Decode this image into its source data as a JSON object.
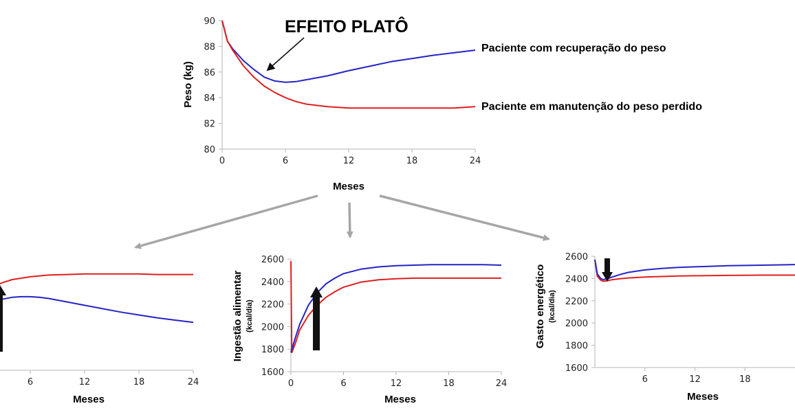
{
  "colors": {
    "blue": "#2323c8",
    "red": "#e01e1e",
    "connector": "#a6a6a6",
    "pointer": "#111111"
  },
  "annotation": "EFEITO PLATÔ",
  "chart_data": [
    {
      "id": "top",
      "type": "line",
      "title": "",
      "xlabel": "Meses",
      "ylabel": "Peso (kg)",
      "ylabel_unit": "",
      "xlim": [
        0,
        24
      ],
      "ylim": [
        80,
        90
      ],
      "xticks": [
        0,
        6,
        12,
        18,
        24
      ],
      "yticks": [
        80,
        82,
        84,
        86,
        88,
        90
      ],
      "series": [
        {
          "name": "Paciente com recuperação do peso",
          "color": "#2323c8",
          "x": [
            0,
            0.5,
            1,
            2,
            3,
            4,
            5,
            6,
            7,
            8,
            10,
            12,
            14,
            16,
            18,
            20,
            22,
            24
          ],
          "y": [
            90,
            88.4,
            87.8,
            86.9,
            86.2,
            85.6,
            85.3,
            85.2,
            85.25,
            85.4,
            85.7,
            86.1,
            86.45,
            86.8,
            87.05,
            87.3,
            87.5,
            87.7
          ]
        },
        {
          "name": "Paciente em manutenção do peso perdido",
          "color": "#e01e1e",
          "x": [
            0,
            0.5,
            1,
            2,
            3,
            4,
            5,
            6,
            7,
            8,
            10,
            12,
            14,
            16,
            18,
            20,
            22,
            24
          ],
          "y": [
            90,
            88.4,
            87.7,
            86.5,
            85.6,
            84.9,
            84.4,
            84.0,
            83.7,
            83.5,
            83.3,
            83.2,
            83.2,
            83.2,
            83.2,
            83.2,
            83.2,
            83.3
          ]
        }
      ]
    },
    {
      "id": "left",
      "type": "line",
      "title": "",
      "xlabel": "Meses",
      "ylabel": "",
      "ylabel_unit": "",
      "xlim": [
        0,
        24
      ],
      "ylim": [
        1600,
        2600
      ],
      "xticks": [
        6,
        12,
        18,
        24
      ],
      "yticks": [],
      "series": [
        {
          "name": "",
          "color": "#e01e1e",
          "x": [
            0,
            1,
            2,
            3,
            4,
            6,
            8,
            10,
            12,
            14,
            16,
            18,
            20,
            22,
            24
          ],
          "y": [
            2180,
            2280,
            2340,
            2370,
            2395,
            2420,
            2435,
            2440,
            2445,
            2445,
            2445,
            2445,
            2440,
            2440,
            2440
          ]
        },
        {
          "name": "",
          "color": "#2323c8",
          "x": [
            0,
            1,
            2,
            3,
            4,
            5,
            6,
            7,
            8,
            10,
            12,
            14,
            16,
            18,
            20,
            22,
            24
          ],
          "y": [
            2110,
            2160,
            2200,
            2225,
            2240,
            2245,
            2245,
            2240,
            2230,
            2200,
            2170,
            2140,
            2110,
            2085,
            2060,
            2040,
            2020
          ]
        }
      ]
    },
    {
      "id": "middle",
      "type": "line",
      "title": "",
      "xlabel": "Meses",
      "ylabel": "Ingestão alimentar",
      "ylabel_unit": "(kcal/dia)",
      "xlim": [
        0,
        24
      ],
      "ylim": [
        1600,
        2600
      ],
      "xticks": [
        0,
        6,
        12,
        18,
        24
      ],
      "yticks": [
        1600,
        1800,
        2000,
        2200,
        2400,
        2600
      ],
      "series": [
        {
          "name": "",
          "color": "#e01e1e",
          "x": [
            0,
            0.1,
            0.5,
            1,
            2,
            3,
            4,
            5,
            6,
            8,
            10,
            12,
            14,
            16,
            18,
            20,
            22,
            24
          ],
          "y": [
            2580,
            1770,
            1850,
            1970,
            2100,
            2190,
            2260,
            2310,
            2350,
            2395,
            2415,
            2425,
            2430,
            2430,
            2430,
            2430,
            2430,
            2430
          ]
        },
        {
          "name": "",
          "color": "#2323c8",
          "x": [
            0,
            0.5,
            1,
            2,
            3,
            4,
            5,
            6,
            8,
            10,
            12,
            14,
            16,
            18,
            20,
            22,
            24
          ],
          "y": [
            1770,
            1900,
            2020,
            2190,
            2300,
            2380,
            2430,
            2470,
            2510,
            2530,
            2540,
            2545,
            2550,
            2550,
            2550,
            2550,
            2545
          ]
        }
      ]
    },
    {
      "id": "right",
      "type": "line",
      "title": "",
      "xlabel": "Meses",
      "ylabel": "Gasto energético",
      "ylabel_unit": "(kcal/dia)",
      "xlim": [
        0,
        24
      ],
      "ylim": [
        1600,
        2600
      ],
      "xticks": [
        6,
        12,
        18
      ],
      "yticks": [
        1600,
        1800,
        2000,
        2200,
        2400,
        2600
      ],
      "series": [
        {
          "name": "",
          "color": "#e01e1e",
          "x": [
            0,
            0.3,
            0.7,
            1,
            1.5,
            2,
            3,
            4,
            6,
            8,
            10,
            12,
            16,
            20,
            24
          ],
          "y": [
            2570,
            2420,
            2385,
            2375,
            2380,
            2388,
            2398,
            2405,
            2413,
            2418,
            2422,
            2425,
            2428,
            2430,
            2430
          ]
        },
        {
          "name": "",
          "color": "#2323c8",
          "x": [
            0,
            0.3,
            0.7,
            1,
            1.5,
            2,
            3,
            4,
            6,
            8,
            10,
            12,
            16,
            20,
            24
          ],
          "y": [
            2570,
            2440,
            2400,
            2390,
            2398,
            2412,
            2435,
            2455,
            2477,
            2490,
            2500,
            2505,
            2515,
            2520,
            2525
          ]
        }
      ]
    }
  ]
}
